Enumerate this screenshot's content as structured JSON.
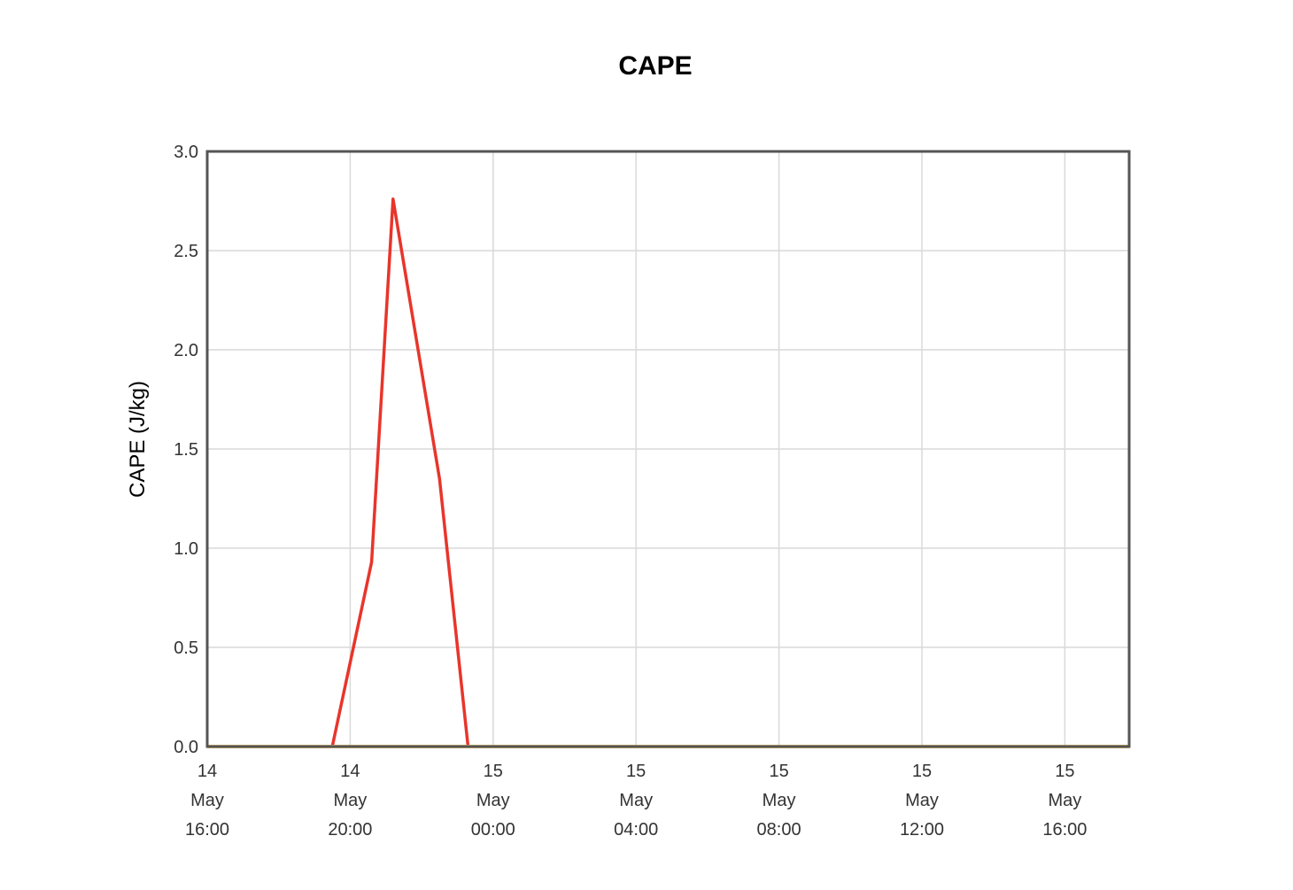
{
  "chart_data": {
    "type": "line",
    "title": "CAPE",
    "xlabel": "",
    "ylabel": "CAPE (J/kg)",
    "ylim": [
      0,
      3.0
    ],
    "xlim_hours": [
      0,
      25.8
    ],
    "grid": true,
    "yticks": [
      "0.0",
      "0.5",
      "1.0",
      "1.5",
      "2.0",
      "2.5",
      "3.0"
    ],
    "xticks": [
      {
        "day": "14",
        "month": "May",
        "time": "16:00"
      },
      {
        "day": "14",
        "month": "May",
        "time": "20:00"
      },
      {
        "day": "15",
        "month": "May",
        "time": "00:00"
      },
      {
        "day": "15",
        "month": "May",
        "time": "04:00"
      },
      {
        "day": "15",
        "month": "May",
        "time": "08:00"
      },
      {
        "day": "15",
        "month": "May",
        "time": "12:00"
      },
      {
        "day": "15",
        "month": "May",
        "time": "16:00"
      }
    ],
    "series": [
      {
        "color": "#e8352b",
        "x_hours": [
          3.5,
          4.6,
          5.2,
          6.5,
          7.3
        ],
        "values": [
          0.0,
          0.93,
          2.76,
          1.35,
          0.0
        ]
      },
      {
        "color": "#e6c062",
        "x_hours": [
          0,
          25.8
        ],
        "values": [
          0.0,
          0.0
        ]
      }
    ]
  }
}
